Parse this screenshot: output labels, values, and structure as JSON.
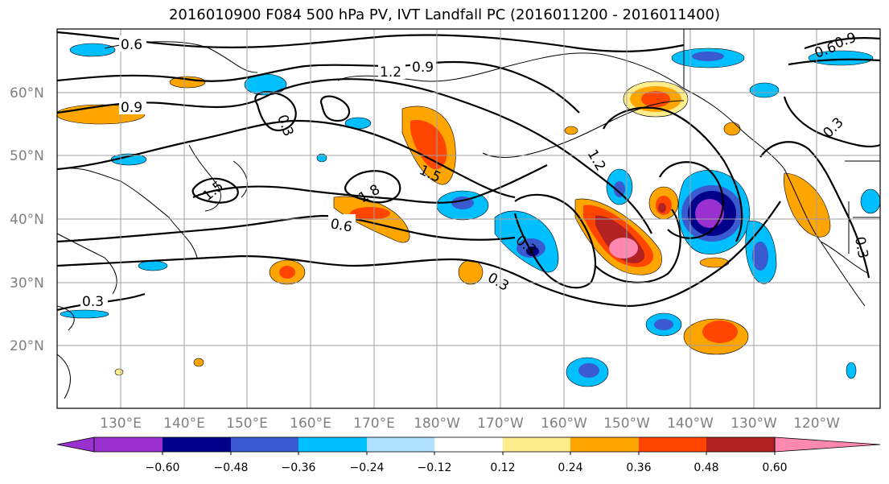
{
  "title": "2016010900 F084 500 hPa PV, IVT Landfall PC (2016011200 - 2016011400)",
  "map": {
    "lat_labels": [
      "60°N",
      "50°N",
      "40°N",
      "30°N",
      "20°N"
    ],
    "lon_labels": [
      "130°E",
      "140°E",
      "150°E",
      "160°E",
      "170°E",
      "180°W",
      "170°W",
      "160°W",
      "150°W",
      "140°W",
      "130°W",
      "120°W"
    ],
    "contour_labels": [
      "0.6",
      "0.9",
      "1.2",
      "0.9",
      "1.5",
      "1.8",
      "0.6",
      "0.3",
      "0.3",
      "1.2",
      "0.3",
      "0.3",
      "0.3",
      "0.9",
      "0.6",
      "1.5",
      "0.3"
    ]
  },
  "colorbar": {
    "colors": [
      "#9b30d0",
      "#00008b",
      "#3a5bd0",
      "#00bfff",
      "#b0e0ff",
      "#ffffff",
      "#ffec8b",
      "#ffa500",
      "#ff4500",
      "#b22222",
      "#ff88b0"
    ],
    "tick_labels": [
      "−0.60",
      "−0.48",
      "−0.36",
      "−0.24",
      "−0.12",
      "0.12",
      "0.24",
      "0.36",
      "0.48",
      "0.60"
    ]
  }
}
